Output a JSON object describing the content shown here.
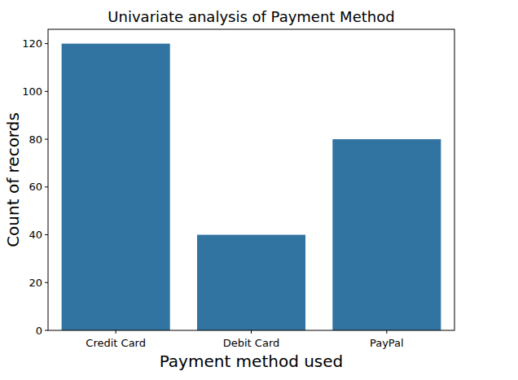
{
  "chart_data": {
    "type": "bar",
    "title": "Univariate analysis of Payment Method",
    "x_label": "Payment method used",
    "y_label": "Count of records",
    "categories": [
      "Credit Card",
      "Debit Card",
      "PayPal"
    ],
    "values": [
      120,
      40,
      80
    ],
    "color": "#3274a1",
    "ylim": [
      0,
      126
    ],
    "yticks": [
      0,
      20,
      40,
      60,
      80,
      100,
      120
    ],
    "grid": false
  }
}
